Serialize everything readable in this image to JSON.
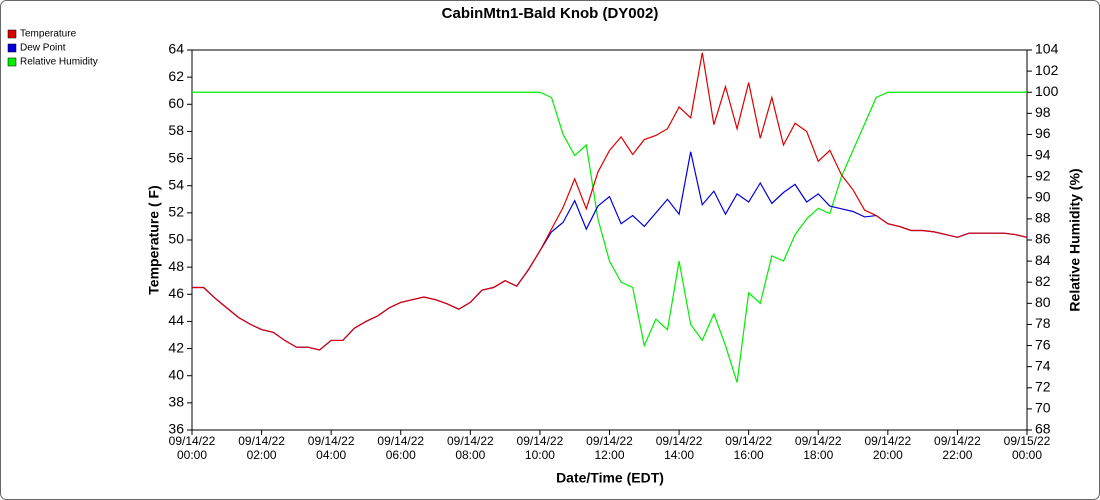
{
  "chart_data": {
    "type": "line",
    "title": "CabinMtn1-Bald Knob (DY002)",
    "x_label": "Date/Time (EDT)",
    "y_label": "Temperature ( F)",
    "y2_label": "Relative Humidity (%)",
    "x": [
      "09/14/22 00:00",
      "09/14/22 00:20",
      "09/14/22 00:40",
      "09/14/22 01:00",
      "09/14/22 01:20",
      "09/14/22 01:40",
      "09/14/22 02:00",
      "09/14/22 02:20",
      "09/14/22 02:40",
      "09/14/22 03:00",
      "09/14/22 03:20",
      "09/14/22 03:40",
      "09/14/22 04:00",
      "09/14/22 04:20",
      "09/14/22 04:40",
      "09/14/22 05:00",
      "09/14/22 05:20",
      "09/14/22 05:40",
      "09/14/22 06:00",
      "09/14/22 06:20",
      "09/14/22 06:40",
      "09/14/22 07:00",
      "09/14/22 07:20",
      "09/14/22 07:40",
      "09/14/22 08:00",
      "09/14/22 08:20",
      "09/14/22 08:40",
      "09/14/22 09:00",
      "09/14/22 09:20",
      "09/14/22 09:40",
      "09/14/22 10:00",
      "09/14/22 10:20",
      "09/14/22 10:40",
      "09/14/22 11:00",
      "09/14/22 11:20",
      "09/14/22 11:40",
      "09/14/22 12:00",
      "09/14/22 12:20",
      "09/14/22 12:40",
      "09/14/22 13:00",
      "09/14/22 13:20",
      "09/14/22 13:40",
      "09/14/22 14:00",
      "09/14/22 14:20",
      "09/14/22 14:40",
      "09/14/22 15:00",
      "09/14/22 15:20",
      "09/14/22 15:40",
      "09/14/22 16:00",
      "09/14/22 16:20",
      "09/14/22 16:40",
      "09/14/22 17:00",
      "09/14/22 17:20",
      "09/14/22 17:40",
      "09/14/22 18:00",
      "09/14/22 18:20",
      "09/14/22 18:40",
      "09/14/22 19:00",
      "09/14/22 19:20",
      "09/14/22 19:40",
      "09/14/22 20:00",
      "09/14/22 20:20",
      "09/14/22 20:40",
      "09/14/22 21:00",
      "09/14/22 21:20",
      "09/14/22 21:40",
      "09/14/22 22:00",
      "09/14/22 22:20",
      "09/14/22 22:40",
      "09/14/22 23:00",
      "09/14/22 23:20",
      "09/14/22 23:40",
      "09/15/22 00:00"
    ],
    "series": [
      {
        "name": "Relative Humidity",
        "color": "#00ee00",
        "axis": "y2",
        "values": [
          100,
          100,
          100,
          100,
          100,
          100,
          100,
          100,
          100,
          100,
          100,
          100,
          100,
          100,
          100,
          100,
          100,
          100,
          100,
          100,
          100,
          100,
          100,
          100,
          100,
          100,
          100,
          100,
          100,
          100,
          100,
          99.5,
          96,
          94,
          95,
          88,
          84,
          82,
          81.5,
          76,
          78.5,
          77.5,
          84,
          78,
          76.5,
          79,
          76,
          72.5,
          81,
          80,
          84.5,
          84,
          86.5,
          88,
          89,
          88.5,
          92,
          94.5,
          97,
          99.5,
          100,
          100,
          100,
          100,
          100,
          100,
          100,
          100,
          100,
          100,
          100,
          100,
          100
        ]
      },
      {
        "name": "Dew Point",
        "color": "#0000dd",
        "values": [
          46.5,
          46.5,
          45.7,
          45.0,
          44.3,
          43.8,
          43.4,
          43.2,
          42.6,
          42.1,
          42.1,
          41.9,
          42.6,
          42.6,
          43.5,
          44.0,
          44.4,
          45.0,
          45.4,
          45.6,
          45.8,
          45.6,
          45.3,
          44.9,
          45.4,
          46.3,
          46.5,
          47.0,
          46.6,
          47.8,
          49.2,
          50.6,
          51.3,
          52.9,
          50.8,
          52.5,
          53.2,
          51.2,
          51.8,
          51.0,
          52.0,
          53.0,
          51.9,
          56.5,
          52.6,
          53.6,
          51.9,
          53.4,
          52.8,
          54.2,
          52.7,
          53.5,
          54.1,
          52.8,
          53.4,
          52.5,
          52.3,
          52.1,
          51.7,
          51.8,
          51.2,
          51.0,
          50.7,
          50.7,
          50.6,
          50.4,
          50.2,
          50.5,
          50.5,
          50.5,
          50.5,
          50.4,
          50.2
        ]
      },
      {
        "name": "Temperature",
        "color": "#dd0000",
        "values": [
          46.5,
          46.5,
          45.7,
          45.0,
          44.3,
          43.8,
          43.4,
          43.2,
          42.6,
          42.1,
          42.1,
          41.9,
          42.6,
          42.6,
          43.5,
          44.0,
          44.4,
          45.0,
          45.4,
          45.6,
          45.8,
          45.6,
          45.3,
          44.9,
          45.4,
          46.3,
          46.5,
          47.0,
          46.6,
          47.8,
          49.2,
          50.8,
          52.4,
          54.5,
          52.3,
          55.0,
          56.6,
          57.6,
          56.3,
          57.4,
          57.7,
          58.2,
          59.8,
          59.0,
          63.8,
          58.5,
          61.3,
          58.2,
          61.6,
          57.5,
          60.5,
          57.0,
          58.6,
          58.0,
          55.8,
          56.6,
          54.8,
          53.7,
          52.2,
          51.8,
          51.2,
          51.0,
          50.7,
          50.7,
          50.6,
          50.4,
          50.2,
          50.5,
          50.5,
          50.5,
          50.5,
          50.4,
          50.2
        ]
      }
    ],
    "legend_order": [
      2,
      1,
      0
    ],
    "xlim": [
      "09/14/22 00:00",
      "09/15/22 00:00"
    ],
    "xticks": [
      "09/14/22 00:00",
      "09/14/22 02:00",
      "09/14/22 04:00",
      "09/14/22 06:00",
      "09/14/22 08:00",
      "09/14/22 10:00",
      "09/14/22 12:00",
      "09/14/22 14:00",
      "09/14/22 16:00",
      "09/14/22 18:00",
      "09/14/22 20:00",
      "09/14/22 22:00",
      "09/15/22 00:00"
    ],
    "ylim": [
      36,
      64
    ],
    "yticks": [
      36,
      38,
      40,
      42,
      44,
      46,
      48,
      50,
      52,
      54,
      56,
      58,
      60,
      62,
      64
    ],
    "y2lim": [
      68,
      104
    ],
    "y2ticks": [
      68,
      70,
      72,
      74,
      76,
      78,
      80,
      82,
      84,
      86,
      88,
      90,
      92,
      94,
      96,
      98,
      100,
      102,
      104
    ],
    "grid": false
  }
}
